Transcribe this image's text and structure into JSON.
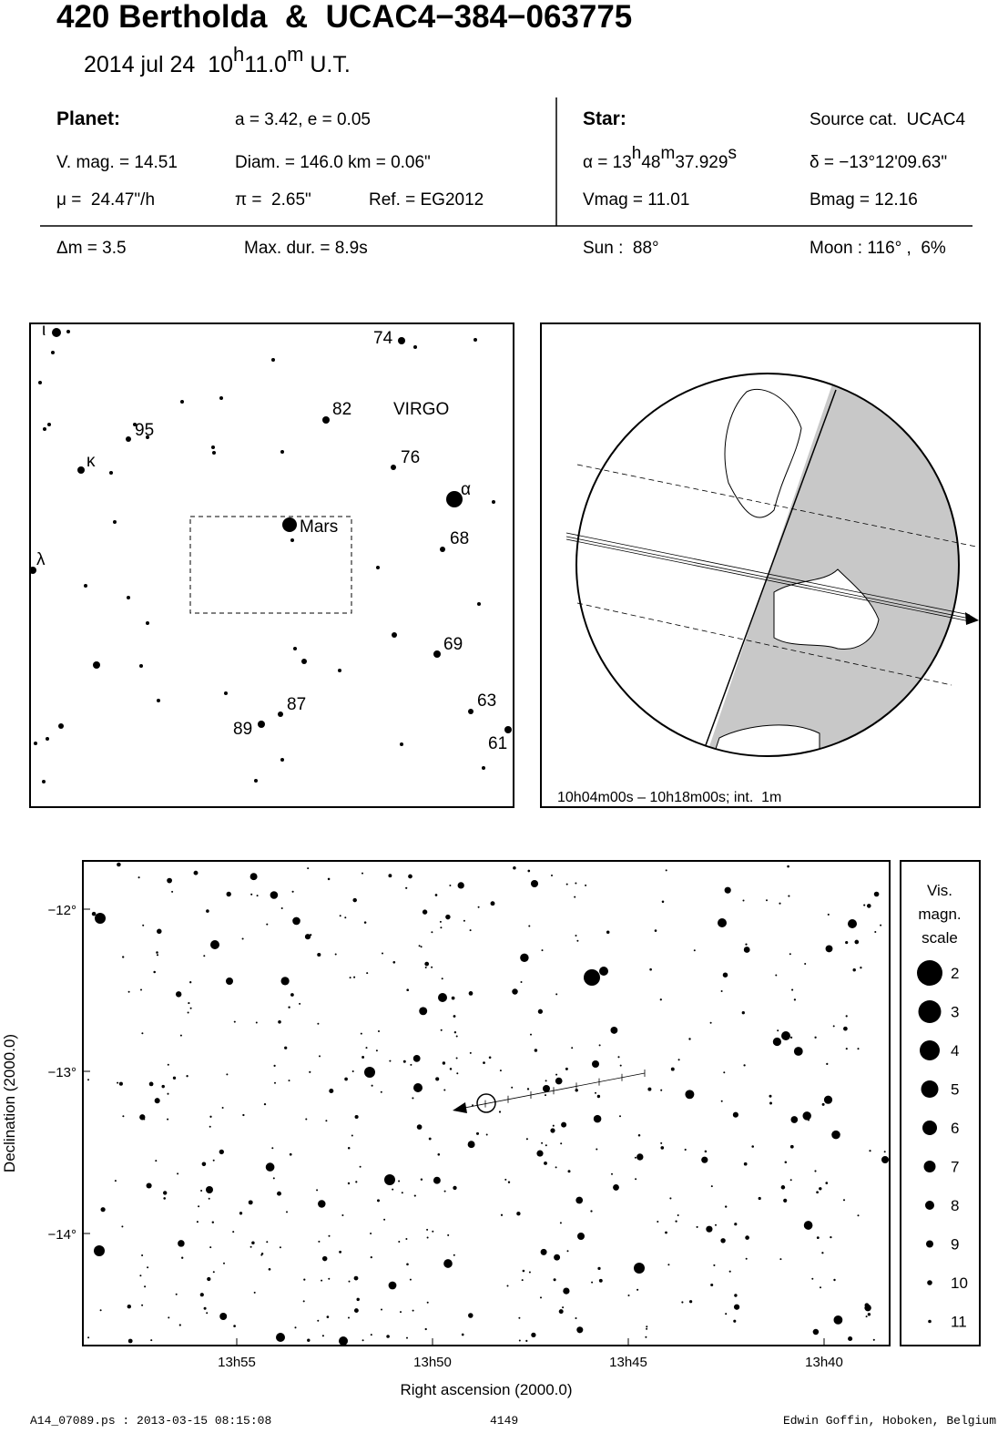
{
  "header": {
    "title": "420 Bertholda  &  UCAC4−384−063775",
    "date": [
      "2014 jul 24  10",
      "h",
      "11.0",
      "m",
      " U.T."
    ]
  },
  "info": {
    "planet_label": "Planet:",
    "orbit": "a = 3.42, e = 0.05",
    "vmag": "V. mag. = 14.51",
    "diam": "Diam. = 146.0 km = 0.06\"",
    "mu": "μ =  24.47\"/h",
    "pi": "π =  2.65\"",
    "ref": "Ref. = EG2012",
    "star_label": "Star:",
    "source": "Source cat.  UCAC4",
    "alpha": [
      "α = 13",
      "h",
      "48",
      "m",
      "37.929",
      "s"
    ],
    "delta": "δ = −13°12'09.63\"",
    "star_vmag": "Vmag = 11.01",
    "star_bmag": "Bmag = 12.16",
    "dm": "Δm = 3.5",
    "maxdur": "Max. dur. = 8.9s",
    "sun": "Sun :  88°",
    "moon": "Moon : 116° ,  6%"
  },
  "finder": {
    "labels": [
      "ι",
      "74",
      "82",
      "VIRGO",
      "95",
      "κ",
      "76",
      "α",
      "Mars",
      "68",
      "λ",
      "69",
      "87",
      "63",
      "89",
      "61"
    ]
  },
  "globe": {
    "caption": "10h04m00s – 10h18m00s; int.  1m"
  },
  "starchart": {
    "y_axis_label": "Declination (2000.0)",
    "x_axis_label": "Right ascension (2000.0)",
    "yticks": [
      "−12°",
      "−13°",
      "−14°"
    ],
    "xticks": [
      "13h55",
      "13h50",
      "13h45",
      "13h40"
    ]
  },
  "legend": {
    "title": [
      "Vis.",
      "magn.",
      "scale"
    ],
    "magnitudes": [
      "2",
      "3",
      "4",
      "5",
      "6",
      "7",
      "8",
      "9",
      "10",
      "11"
    ]
  },
  "footer": {
    "file": "A14_07089.ps : 2013-03-15 08:15:08",
    "number": "4149",
    "author": "Edwin Goffin, Hoboken, Belgium"
  }
}
